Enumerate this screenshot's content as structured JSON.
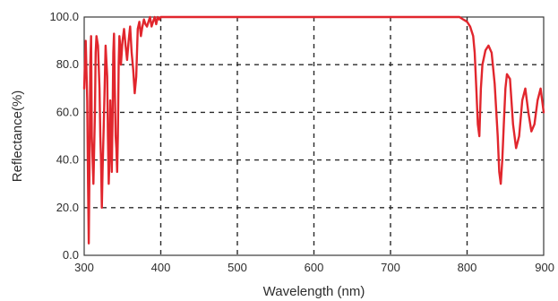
{
  "chart_data": {
    "type": "line",
    "title": "",
    "xlabel": "Wavelength (nm)",
    "ylabel": "Reflectance(%)",
    "xlim": [
      300,
      900
    ],
    "ylim": [
      0,
      100
    ],
    "x_ticks": [
      300,
      400,
      500,
      600,
      700,
      800,
      900
    ],
    "y_ticks": [
      0,
      20,
      40,
      60,
      80,
      100
    ],
    "x_tick_labels": [
      "300",
      "400",
      "500",
      "600",
      "700",
      "800",
      "900"
    ],
    "y_tick_labels": [
      "0.0",
      "20.0",
      "40.0",
      "60.0",
      "80.0",
      "100.0"
    ],
    "grid": true,
    "grid_style": "dashed",
    "legend": "none",
    "series": [
      {
        "color": "#e1262d",
        "x": [
          300,
          302,
          304,
          305,
          306,
          307,
          308,
          309,
          310,
          312,
          314,
          315,
          316,
          318,
          320,
          321,
          322,
          323,
          324,
          326,
          328,
          330,
          331,
          332,
          333,
          334,
          335,
          336,
          337,
          338,
          339,
          340,
          341,
          342,
          343,
          344,
          345,
          346,
          347,
          348,
          350,
          352,
          354,
          356,
          358,
          360,
          362,
          364,
          366,
          368,
          370,
          372,
          374,
          376,
          378,
          380,
          382,
          384,
          386,
          388,
          390,
          392,
          394,
          396,
          398,
          400,
          405,
          410,
          420,
          430,
          450,
          500,
          550,
          600,
          650,
          700,
          750,
          780,
          790,
          795,
          800,
          804,
          808,
          810,
          812,
          814,
          816,
          818,
          820,
          824,
          828,
          832,
          836,
          840,
          842,
          844,
          846,
          848,
          850,
          852,
          856,
          860,
          864,
          868,
          872,
          876,
          880,
          884,
          888,
          892,
          896,
          900
        ],
        "y": [
          70,
          90,
          65,
          30,
          5,
          40,
          80,
          92,
          50,
          30,
          60,
          85,
          92,
          88,
          70,
          50,
          40,
          20,
          35,
          60,
          88,
          75,
          50,
          30,
          40,
          65,
          55,
          35,
          55,
          85,
          93,
          70,
          50,
          45,
          35,
          50,
          80,
          92,
          88,
          80,
          90,
          95,
          88,
          82,
          90,
          96,
          85,
          78,
          68,
          75,
          95,
          98,
          92,
          96,
          99,
          97,
          96,
          98,
          100,
          96,
          98,
          100,
          97,
          100,
          99,
          100,
          100,
          100,
          100,
          100,
          100,
          100,
          100,
          100,
          100,
          100,
          100,
          100,
          100,
          99,
          98,
          96,
          92,
          85,
          70,
          55,
          50,
          70,
          80,
          86,
          88,
          85,
          72,
          50,
          35,
          30,
          40,
          55,
          70,
          76,
          74,
          55,
          45,
          50,
          65,
          70,
          60,
          52,
          55,
          65,
          70,
          60
        ]
      }
    ]
  }
}
